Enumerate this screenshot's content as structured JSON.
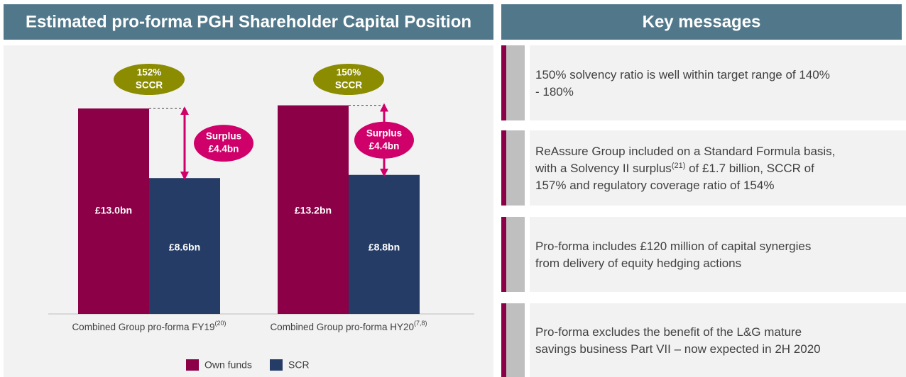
{
  "panel_titles": [
    "Estimated pro-forma PGH Shareholder Capital Position",
    "Key messages"
  ],
  "chart_data": {
    "type": "bar",
    "categories": [
      "Combined Group pro-forma FY19",
      "Combined Group pro-forma HY20"
    ],
    "category_superscripts": [
      "(20)",
      "(7,8)"
    ],
    "series": [
      {
        "name": "Own funds",
        "color": "#8c0047",
        "values": [
          13.0,
          13.2
        ],
        "value_labels": [
          "£13.0bn",
          "£13.2bn"
        ]
      },
      {
        "name": "SCR",
        "color": "#253c66",
        "values": [
          8.6,
          8.8
        ],
        "value_labels": [
          "£8.6bn",
          "£8.8bn"
        ]
      }
    ],
    "ratio_annotations": [
      [
        "152%",
        "SCCR"
      ],
      [
        "150%",
        "SCCR"
      ]
    ],
    "ratio_color": "#8c8c00",
    "surplus_annotations": [
      [
        "Surplus",
        "£4.4bn"
      ],
      [
        "Surplus",
        "£4.4bn"
      ]
    ],
    "surplus_color": "#d0006a",
    "legend": "bottom"
  },
  "key_messages": [
    [
      [
        "150% solvency ratio is well within target range of 140%"
      ],
      [
        "- 180%"
      ]
    ],
    [
      [
        "ReAssure Group included on a Standard Formula basis,"
      ],
      [
        "with a Solvency II surplus",
        {
          "text": "(21)",
          "sup": true
        },
        " of £1.7 billion, SCCR of"
      ],
      [
        "157% and regulatory coverage ratio of 154%"
      ]
    ],
    [
      [
        "Pro-forma includes £120 million of capital synergies"
      ],
      [
        "from delivery of equity hedging actions"
      ]
    ],
    [
      [
        "Pro-forma excludes the benefit of the L&G mature"
      ],
      [
        "savings business Part VII – now expected in 2H 2020"
      ]
    ]
  ]
}
